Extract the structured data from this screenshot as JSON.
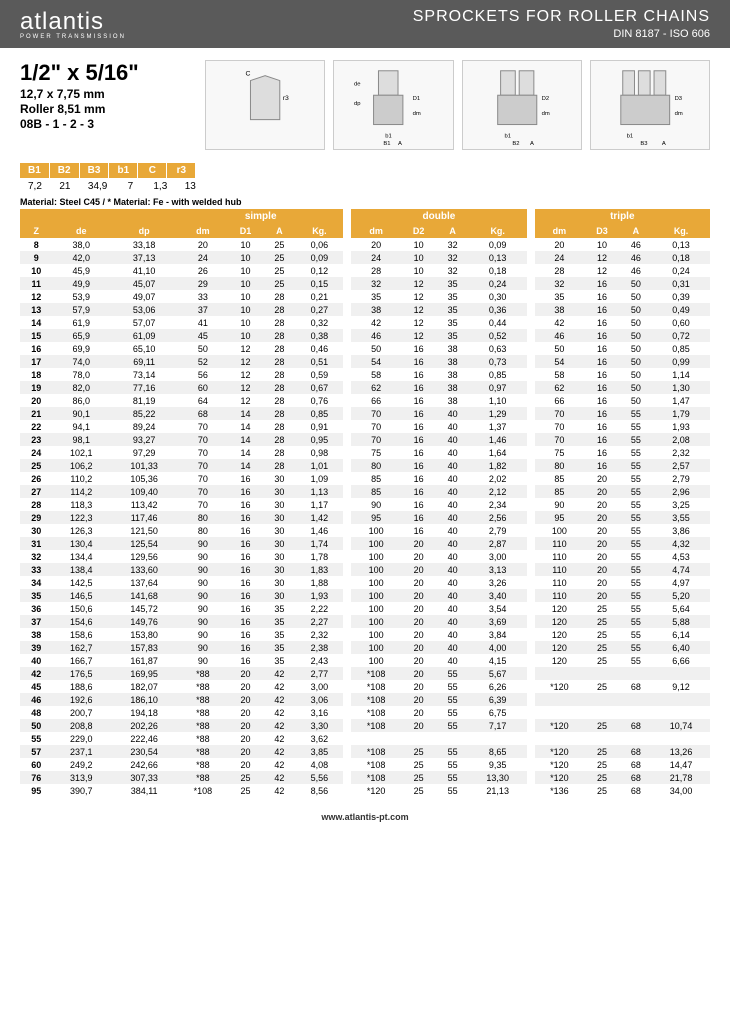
{
  "header": {
    "logo": "atlantis",
    "logo_sub": "POWER TRANSMISSION",
    "title": "SPROCKETS FOR ROLLER CHAINS",
    "subtitle": "DIN 8187 - ISO 606"
  },
  "spec": {
    "title": "1/2\" x 5/16\"",
    "line1": "12,7 x 7,75 mm",
    "line2": "Roller 8,51 mm",
    "line3": "08B - 1 - 2 - 3"
  },
  "small_table": {
    "headers": [
      "B1",
      "B2",
      "B3",
      "b1",
      "C",
      "r3"
    ],
    "values": [
      "7,2",
      "21",
      "34,9",
      "7",
      "1,3",
      "13"
    ]
  },
  "material": "Material: Steel C45 / * Material: Fe - with welded hub",
  "section_headers": [
    "simple",
    "double",
    "triple"
  ],
  "col_headers": {
    "left": [
      "Z",
      "de",
      "dp"
    ],
    "simple": [
      "dm",
      "D1",
      "A",
      "Kg."
    ],
    "double": [
      "dm",
      "D2",
      "A",
      "Kg."
    ],
    "triple": [
      "dm",
      "D3",
      "A",
      "Kg."
    ]
  },
  "rows": [
    {
      "z": "8",
      "de": "38,0",
      "dp": "33,18",
      "s": [
        "20",
        "10",
        "25",
        "0,06"
      ],
      "d": [
        "20",
        "10",
        "32",
        "0,09"
      ],
      "t": [
        "20",
        "10",
        "46",
        "0,13"
      ]
    },
    {
      "z": "9",
      "de": "42,0",
      "dp": "37,13",
      "s": [
        "24",
        "10",
        "25",
        "0,09"
      ],
      "d": [
        "24",
        "10",
        "32",
        "0,13"
      ],
      "t": [
        "24",
        "12",
        "46",
        "0,18"
      ]
    },
    {
      "z": "10",
      "de": "45,9",
      "dp": "41,10",
      "s": [
        "26",
        "10",
        "25",
        "0,12"
      ],
      "d": [
        "28",
        "10",
        "32",
        "0,18"
      ],
      "t": [
        "28",
        "12",
        "46",
        "0,24"
      ]
    },
    {
      "z": "11",
      "de": "49,9",
      "dp": "45,07",
      "s": [
        "29",
        "10",
        "25",
        "0,15"
      ],
      "d": [
        "32",
        "12",
        "35",
        "0,24"
      ],
      "t": [
        "32",
        "16",
        "50",
        "0,31"
      ]
    },
    {
      "z": "12",
      "de": "53,9",
      "dp": "49,07",
      "s": [
        "33",
        "10",
        "28",
        "0,21"
      ],
      "d": [
        "35",
        "12",
        "35",
        "0,30"
      ],
      "t": [
        "35",
        "16",
        "50",
        "0,39"
      ]
    },
    {
      "z": "13",
      "de": "57,9",
      "dp": "53,06",
      "s": [
        "37",
        "10",
        "28",
        "0,27"
      ],
      "d": [
        "38",
        "12",
        "35",
        "0,36"
      ],
      "t": [
        "38",
        "16",
        "50",
        "0,49"
      ]
    },
    {
      "z": "14",
      "de": "61,9",
      "dp": "57,07",
      "s": [
        "41",
        "10",
        "28",
        "0,32"
      ],
      "d": [
        "42",
        "12",
        "35",
        "0,44"
      ],
      "t": [
        "42",
        "16",
        "50",
        "0,60"
      ]
    },
    {
      "z": "15",
      "de": "65,9",
      "dp": "61,09",
      "s": [
        "45",
        "10",
        "28",
        "0,38"
      ],
      "d": [
        "46",
        "12",
        "35",
        "0,52"
      ],
      "t": [
        "46",
        "16",
        "50",
        "0,72"
      ]
    },
    {
      "z": "16",
      "de": "69,9",
      "dp": "65,10",
      "s": [
        "50",
        "12",
        "28",
        "0,46"
      ],
      "d": [
        "50",
        "16",
        "38",
        "0,63"
      ],
      "t": [
        "50",
        "16",
        "50",
        "0,85"
      ]
    },
    {
      "z": "17",
      "de": "74,0",
      "dp": "69,11",
      "s": [
        "52",
        "12",
        "28",
        "0,51"
      ],
      "d": [
        "54",
        "16",
        "38",
        "0,73"
      ],
      "t": [
        "54",
        "16",
        "50",
        "0,99"
      ]
    },
    {
      "z": "18",
      "de": "78,0",
      "dp": "73,14",
      "s": [
        "56",
        "12",
        "28",
        "0,59"
      ],
      "d": [
        "58",
        "16",
        "38",
        "0,85"
      ],
      "t": [
        "58",
        "16",
        "50",
        "1,14"
      ]
    },
    {
      "z": "19",
      "de": "82,0",
      "dp": "77,16",
      "s": [
        "60",
        "12",
        "28",
        "0,67"
      ],
      "d": [
        "62",
        "16",
        "38",
        "0,97"
      ],
      "t": [
        "62",
        "16",
        "50",
        "1,30"
      ]
    },
    {
      "z": "20",
      "de": "86,0",
      "dp": "81,19",
      "s": [
        "64",
        "12",
        "28",
        "0,76"
      ],
      "d": [
        "66",
        "16",
        "38",
        "1,10"
      ],
      "t": [
        "66",
        "16",
        "50",
        "1,47"
      ]
    },
    {
      "z": "21",
      "de": "90,1",
      "dp": "85,22",
      "s": [
        "68",
        "14",
        "28",
        "0,85"
      ],
      "d": [
        "70",
        "16",
        "40",
        "1,29"
      ],
      "t": [
        "70",
        "16",
        "55",
        "1,79"
      ]
    },
    {
      "z": "22",
      "de": "94,1",
      "dp": "89,24",
      "s": [
        "70",
        "14",
        "28",
        "0,91"
      ],
      "d": [
        "70",
        "16",
        "40",
        "1,37"
      ],
      "t": [
        "70",
        "16",
        "55",
        "1,93"
      ]
    },
    {
      "z": "23",
      "de": "98,1",
      "dp": "93,27",
      "s": [
        "70",
        "14",
        "28",
        "0,95"
      ],
      "d": [
        "70",
        "16",
        "40",
        "1,46"
      ],
      "t": [
        "70",
        "16",
        "55",
        "2,08"
      ]
    },
    {
      "z": "24",
      "de": "102,1",
      "dp": "97,29",
      "s": [
        "70",
        "14",
        "28",
        "0,98"
      ],
      "d": [
        "75",
        "16",
        "40",
        "1,64"
      ],
      "t": [
        "75",
        "16",
        "55",
        "2,32"
      ]
    },
    {
      "z": "25",
      "de": "106,2",
      "dp": "101,33",
      "s": [
        "70",
        "14",
        "28",
        "1,01"
      ],
      "d": [
        "80",
        "16",
        "40",
        "1,82"
      ],
      "t": [
        "80",
        "16",
        "55",
        "2,57"
      ]
    },
    {
      "z": "26",
      "de": "110,2",
      "dp": "105,36",
      "s": [
        "70",
        "16",
        "30",
        "1,09"
      ],
      "d": [
        "85",
        "16",
        "40",
        "2,02"
      ],
      "t": [
        "85",
        "20",
        "55",
        "2,79"
      ]
    },
    {
      "z": "27",
      "de": "114,2",
      "dp": "109,40",
      "s": [
        "70",
        "16",
        "30",
        "1,13"
      ],
      "d": [
        "85",
        "16",
        "40",
        "2,12"
      ],
      "t": [
        "85",
        "20",
        "55",
        "2,96"
      ]
    },
    {
      "z": "28",
      "de": "118,3",
      "dp": "113,42",
      "s": [
        "70",
        "16",
        "30",
        "1,17"
      ],
      "d": [
        "90",
        "16",
        "40",
        "2,34"
      ],
      "t": [
        "90",
        "20",
        "55",
        "3,25"
      ]
    },
    {
      "z": "29",
      "de": "122,3",
      "dp": "117,46",
      "s": [
        "80",
        "16",
        "30",
        "1,42"
      ],
      "d": [
        "95",
        "16",
        "40",
        "2,56"
      ],
      "t": [
        "95",
        "20",
        "55",
        "3,55"
      ]
    },
    {
      "z": "30",
      "de": "126,3",
      "dp": "121,50",
      "s": [
        "80",
        "16",
        "30",
        "1,46"
      ],
      "d": [
        "100",
        "16",
        "40",
        "2,79"
      ],
      "t": [
        "100",
        "20",
        "55",
        "3,86"
      ]
    },
    {
      "z": "31",
      "de": "130,4",
      "dp": "125,54",
      "s": [
        "90",
        "16",
        "30",
        "1,74"
      ],
      "d": [
        "100",
        "20",
        "40",
        "2,87"
      ],
      "t": [
        "110",
        "20",
        "55",
        "4,32"
      ]
    },
    {
      "z": "32",
      "de": "134,4",
      "dp": "129,56",
      "s": [
        "90",
        "16",
        "30",
        "1,78"
      ],
      "d": [
        "100",
        "20",
        "40",
        "3,00"
      ],
      "t": [
        "110",
        "20",
        "55",
        "4,53"
      ]
    },
    {
      "z": "33",
      "de": "138,4",
      "dp": "133,60",
      "s": [
        "90",
        "16",
        "30",
        "1,83"
      ],
      "d": [
        "100",
        "20",
        "40",
        "3,13"
      ],
      "t": [
        "110",
        "20",
        "55",
        "4,74"
      ]
    },
    {
      "z": "34",
      "de": "142,5",
      "dp": "137,64",
      "s": [
        "90",
        "16",
        "30",
        "1,88"
      ],
      "d": [
        "100",
        "20",
        "40",
        "3,26"
      ],
      "t": [
        "110",
        "20",
        "55",
        "4,97"
      ]
    },
    {
      "z": "35",
      "de": "146,5",
      "dp": "141,68",
      "s": [
        "90",
        "16",
        "30",
        "1,93"
      ],
      "d": [
        "100",
        "20",
        "40",
        "3,40"
      ],
      "t": [
        "110",
        "20",
        "55",
        "5,20"
      ]
    },
    {
      "z": "36",
      "de": "150,6",
      "dp": "145,72",
      "s": [
        "90",
        "16",
        "35",
        "2,22"
      ],
      "d": [
        "100",
        "20",
        "40",
        "3,54"
      ],
      "t": [
        "120",
        "25",
        "55",
        "5,64"
      ]
    },
    {
      "z": "37",
      "de": "154,6",
      "dp": "149,76",
      "s": [
        "90",
        "16",
        "35",
        "2,27"
      ],
      "d": [
        "100",
        "20",
        "40",
        "3,69"
      ],
      "t": [
        "120",
        "25",
        "55",
        "5,88"
      ]
    },
    {
      "z": "38",
      "de": "158,6",
      "dp": "153,80",
      "s": [
        "90",
        "16",
        "35",
        "2,32"
      ],
      "d": [
        "100",
        "20",
        "40",
        "3,84"
      ],
      "t": [
        "120",
        "25",
        "55",
        "6,14"
      ]
    },
    {
      "z": "39",
      "de": "162,7",
      "dp": "157,83",
      "s": [
        "90",
        "16",
        "35",
        "2,38"
      ],
      "d": [
        "100",
        "20",
        "40",
        "4,00"
      ],
      "t": [
        "120",
        "25",
        "55",
        "6,40"
      ]
    },
    {
      "z": "40",
      "de": "166,7",
      "dp": "161,87",
      "s": [
        "90",
        "16",
        "35",
        "2,43"
      ],
      "d": [
        "100",
        "20",
        "40",
        "4,15"
      ],
      "t": [
        "120",
        "25",
        "55",
        "6,66"
      ]
    },
    {
      "z": "42",
      "de": "176,5",
      "dp": "169,95",
      "s": [
        "*88",
        "20",
        "42",
        "2,77"
      ],
      "d": [
        "*108",
        "20",
        "55",
        "5,67"
      ],
      "t": [
        "",
        "",
        "",
        ""
      ]
    },
    {
      "z": "45",
      "de": "188,6",
      "dp": "182,07",
      "s": [
        "*88",
        "20",
        "42",
        "3,00"
      ],
      "d": [
        "*108",
        "20",
        "55",
        "6,26"
      ],
      "t": [
        "*120",
        "25",
        "68",
        "9,12"
      ]
    },
    {
      "z": "46",
      "de": "192,6",
      "dp": "186,10",
      "s": [
        "*88",
        "20",
        "42",
        "3,06"
      ],
      "d": [
        "*108",
        "20",
        "55",
        "6,39"
      ],
      "t": [
        "",
        "",
        "",
        ""
      ]
    },
    {
      "z": "48",
      "de": "200,7",
      "dp": "194,18",
      "s": [
        "*88",
        "20",
        "42",
        "3,16"
      ],
      "d": [
        "*108",
        "20",
        "55",
        "6,75"
      ],
      "t": [
        "",
        "",
        "",
        ""
      ]
    },
    {
      "z": "50",
      "de": "208,8",
      "dp": "202,26",
      "s": [
        "*88",
        "20",
        "42",
        "3,30"
      ],
      "d": [
        "*108",
        "20",
        "55",
        "7,17"
      ],
      "t": [
        "*120",
        "25",
        "68",
        "10,74"
      ]
    },
    {
      "z": "55",
      "de": "229,0",
      "dp": "222,46",
      "s": [
        "*88",
        "20",
        "42",
        "3,62"
      ],
      "d": [
        "",
        "",
        "",
        ""
      ],
      "t": [
        "",
        "",
        "",
        ""
      ]
    },
    {
      "z": "57",
      "de": "237,1",
      "dp": "230,54",
      "s": [
        "*88",
        "20",
        "42",
        "3,85"
      ],
      "d": [
        "*108",
        "25",
        "55",
        "8,65"
      ],
      "t": [
        "*120",
        "25",
        "68",
        "13,26"
      ]
    },
    {
      "z": "60",
      "de": "249,2",
      "dp": "242,66",
      "s": [
        "*88",
        "20",
        "42",
        "4,08"
      ],
      "d": [
        "*108",
        "25",
        "55",
        "9,35"
      ],
      "t": [
        "*120",
        "25",
        "68",
        "14,47"
      ]
    },
    {
      "z": "76",
      "de": "313,9",
      "dp": "307,33",
      "s": [
        "*88",
        "25",
        "42",
        "5,56"
      ],
      "d": [
        "*108",
        "25",
        "55",
        "13,30"
      ],
      "t": [
        "*120",
        "25",
        "68",
        "21,78"
      ]
    },
    {
      "z": "95",
      "de": "390,7",
      "dp": "384,11",
      "s": [
        "*108",
        "25",
        "42",
        "8,56"
      ],
      "d": [
        "*120",
        "25",
        "55",
        "21,13"
      ],
      "t": [
        "*136",
        "25",
        "68",
        "34,00"
      ]
    }
  ],
  "footer": "www.atlantis-pt.com",
  "colors": {
    "header_bg": "#5a5a5a",
    "accent": "#e8a838",
    "row_alt": "#f0f0f0"
  }
}
